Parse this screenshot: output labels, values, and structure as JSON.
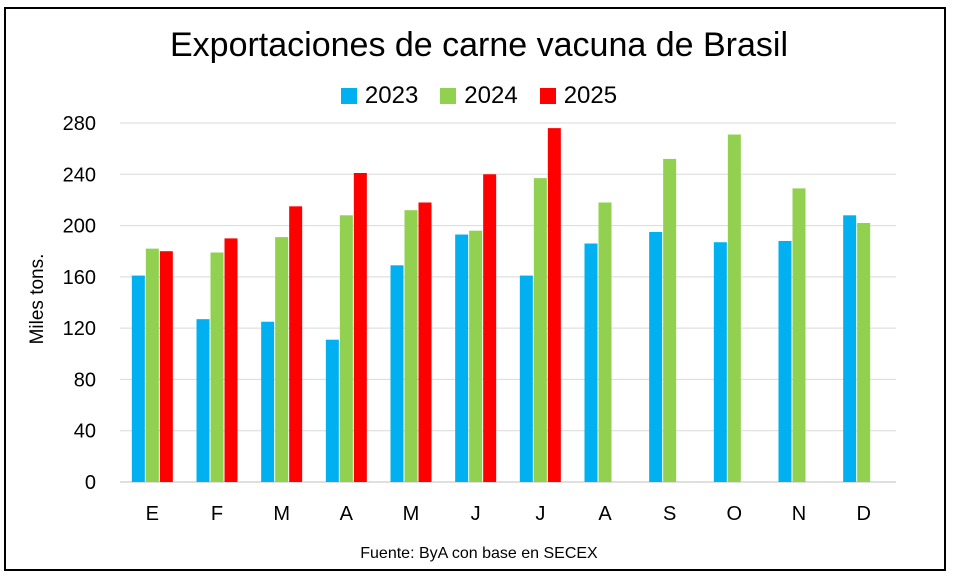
{
  "chart_data": {
    "type": "bar",
    "title": "Exportaciones de carne vacuna de Brasil",
    "ylabel": "Miles tons.",
    "xlabel": "",
    "source": "Fuente: ByA con base en SECEX",
    "ylim": [
      0,
      280
    ],
    "yticks": [
      0,
      40,
      80,
      120,
      160,
      200,
      240,
      280
    ],
    "grid": true,
    "legend_position": "top",
    "categories": [
      "E",
      "F",
      "M",
      "A",
      "M",
      "J",
      "J",
      "A",
      "S",
      "O",
      "N",
      "D"
    ],
    "series": [
      {
        "name": "2023",
        "color": "#00B0F0",
        "values": [
          161,
          127,
          125,
          111,
          169,
          193,
          161,
          186,
          195,
          187,
          188,
          208
        ]
      },
      {
        "name": "2024",
        "color": "#92D050",
        "values": [
          182,
          179,
          191,
          208,
          212,
          196,
          237,
          218,
          252,
          271,
          229,
          202
        ]
      },
      {
        "name": "2025",
        "color": "#FF0000",
        "values": [
          180,
          190,
          215,
          241,
          218,
          240,
          276,
          null,
          null,
          null,
          null,
          null
        ]
      }
    ]
  }
}
